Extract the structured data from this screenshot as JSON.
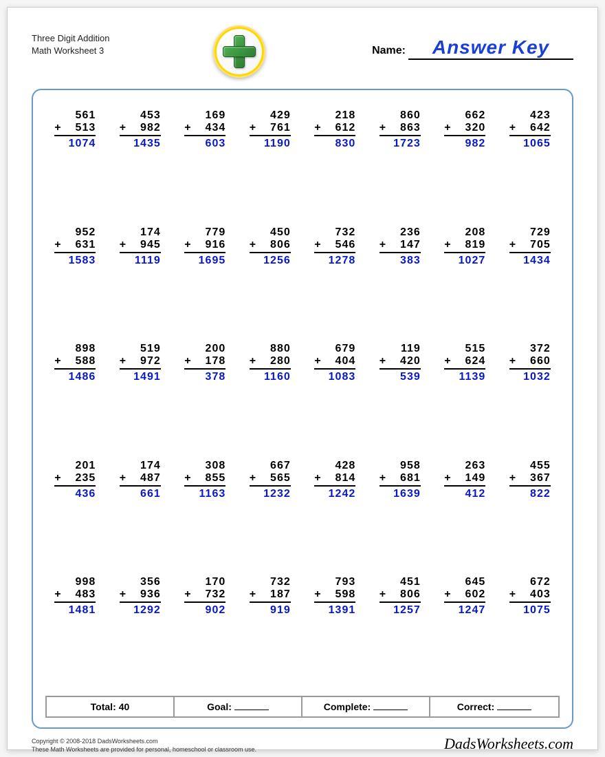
{
  "header": {
    "title_line1": "Three Digit Addition",
    "title_line2": "Math Worksheet 3",
    "name_label": "Name:",
    "answer_key": "Answer Key"
  },
  "style": {
    "page_bg": "#ffffff",
    "frame_border": "#6699cc",
    "answer_color": "#0818c9",
    "problem_color": "#000000",
    "plus_green": "#2e7d32",
    "badge_gold": "#ffd700",
    "font_size_problem": 16,
    "font_size_title": 13,
    "font_size_answer_key": 28,
    "columns": 8,
    "rows": 5
  },
  "problems": [
    {
      "a": 561,
      "b": 513,
      "ans": 1074
    },
    {
      "a": 453,
      "b": 982,
      "ans": 1435
    },
    {
      "a": 169,
      "b": 434,
      "ans": 603
    },
    {
      "a": 429,
      "b": 761,
      "ans": 1190
    },
    {
      "a": 218,
      "b": 612,
      "ans": 830
    },
    {
      "a": 860,
      "b": 863,
      "ans": 1723
    },
    {
      "a": 662,
      "b": 320,
      "ans": 982
    },
    {
      "a": 423,
      "b": 642,
      "ans": 1065
    },
    {
      "a": 952,
      "b": 631,
      "ans": 1583
    },
    {
      "a": 174,
      "b": 945,
      "ans": 1119
    },
    {
      "a": 779,
      "b": 916,
      "ans": 1695
    },
    {
      "a": 450,
      "b": 806,
      "ans": 1256
    },
    {
      "a": 732,
      "b": 546,
      "ans": 1278
    },
    {
      "a": 236,
      "b": 147,
      "ans": 383
    },
    {
      "a": 208,
      "b": 819,
      "ans": 1027
    },
    {
      "a": 729,
      "b": 705,
      "ans": 1434
    },
    {
      "a": 898,
      "b": 588,
      "ans": 1486
    },
    {
      "a": 519,
      "b": 972,
      "ans": 1491
    },
    {
      "a": 200,
      "b": 178,
      "ans": 378
    },
    {
      "a": 880,
      "b": 280,
      "ans": 1160
    },
    {
      "a": 679,
      "b": 404,
      "ans": 1083
    },
    {
      "a": 119,
      "b": 420,
      "ans": 539
    },
    {
      "a": 515,
      "b": 624,
      "ans": 1139
    },
    {
      "a": 372,
      "b": 660,
      "ans": 1032
    },
    {
      "a": 201,
      "b": 235,
      "ans": 436
    },
    {
      "a": 174,
      "b": 487,
      "ans": 661
    },
    {
      "a": 308,
      "b": 855,
      "ans": 1163
    },
    {
      "a": 667,
      "b": 565,
      "ans": 1232
    },
    {
      "a": 428,
      "b": 814,
      "ans": 1242
    },
    {
      "a": 958,
      "b": 681,
      "ans": 1639
    },
    {
      "a": 263,
      "b": 149,
      "ans": 412
    },
    {
      "a": 455,
      "b": 367,
      "ans": 822
    },
    {
      "a": 998,
      "b": 483,
      "ans": 1481
    },
    {
      "a": 356,
      "b": 936,
      "ans": 1292
    },
    {
      "a": 170,
      "b": 732,
      "ans": 902
    },
    {
      "a": 732,
      "b": 187,
      "ans": 919
    },
    {
      "a": 793,
      "b": 598,
      "ans": 1391
    },
    {
      "a": 451,
      "b": 806,
      "ans": 1257
    },
    {
      "a": 645,
      "b": 602,
      "ans": 1247
    },
    {
      "a": 672,
      "b": 403,
      "ans": 1075
    }
  ],
  "summary": {
    "total_label": "Total:",
    "total_value": "40",
    "goal_label": "Goal:",
    "complete_label": "Complete:",
    "correct_label": "Correct:"
  },
  "footer": {
    "copyright": "Copyright © 2008-2018 DadsWorksheets.com",
    "note": "These Math Worksheets are provided for personal, homeschool or classroom use.",
    "site": "DadsWorksheets.com"
  }
}
